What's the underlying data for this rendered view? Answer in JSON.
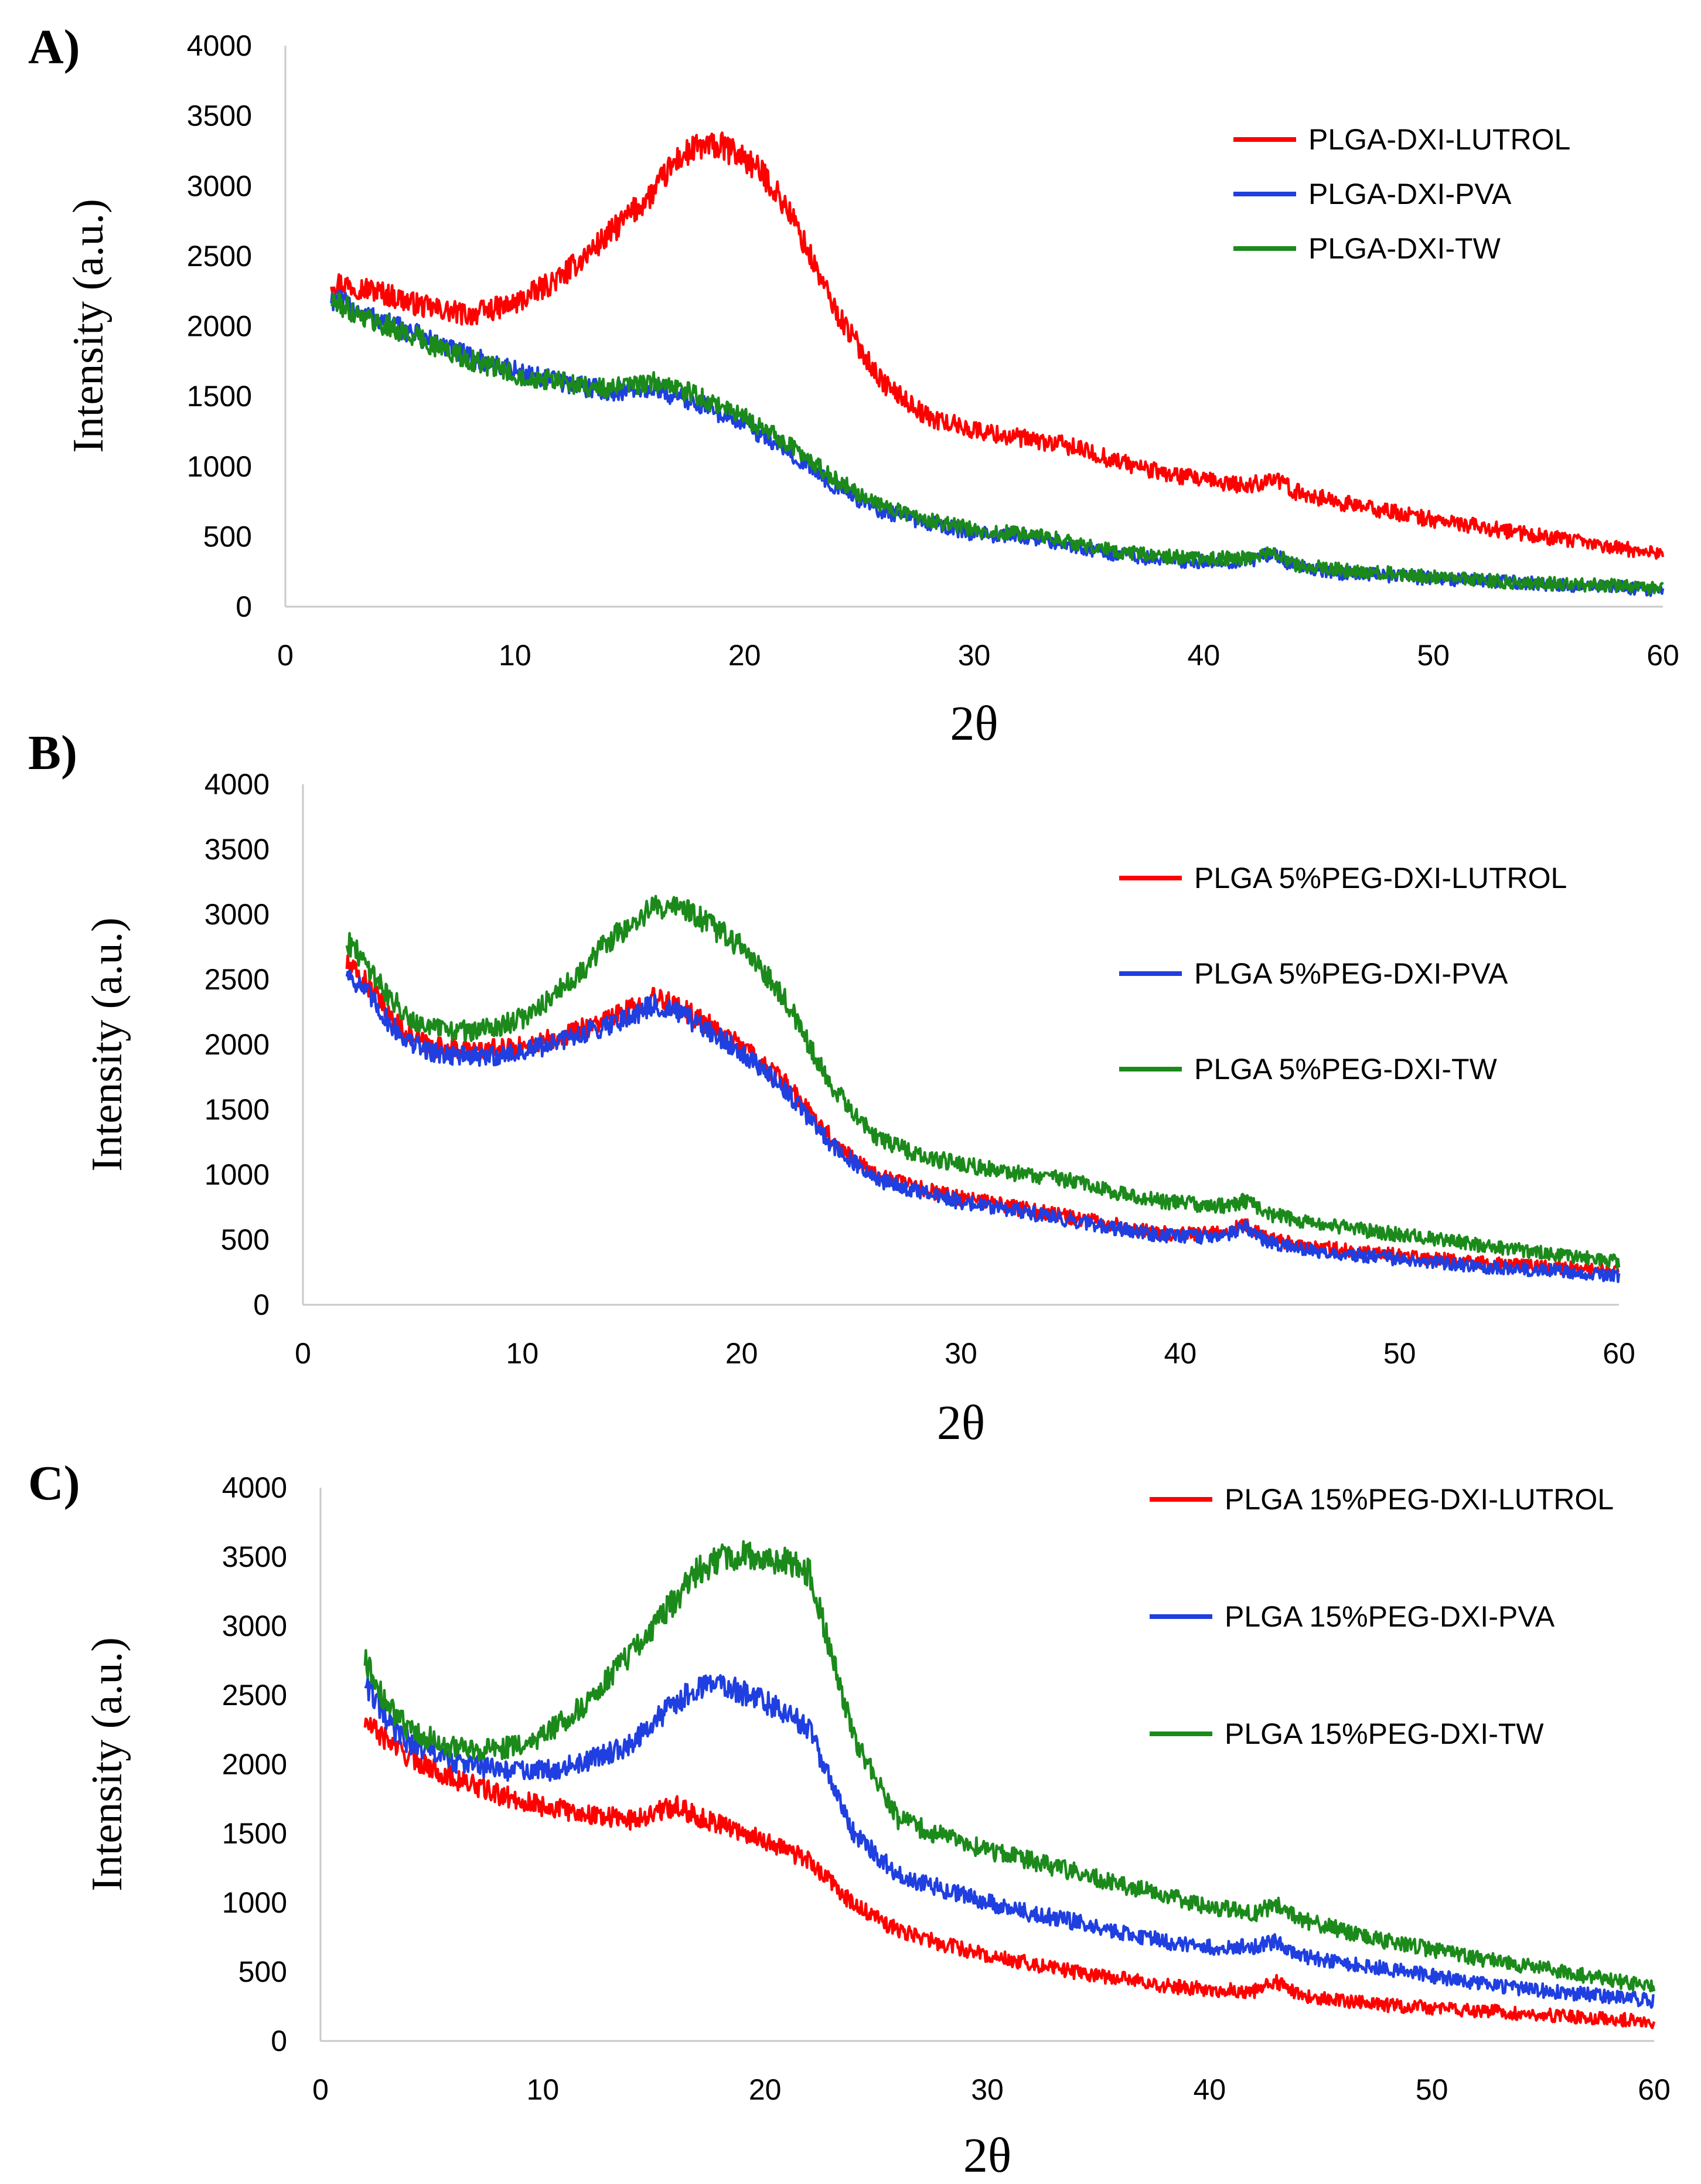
{
  "colors": {
    "red": "#ff0000",
    "blue": "#1f3fe0",
    "green": "#1b8a1b",
    "axis": "#c9c9c9"
  },
  "chart_data": [
    {
      "panel": "A)",
      "type": "line",
      "xlabel": "2θ",
      "ylabel": "Intensity (a.u.)",
      "xlim": [
        0,
        60
      ],
      "ylim": [
        0,
        4000
      ],
      "xticks": [
        "0",
        "10",
        "20",
        "30",
        "40",
        "50",
        "60"
      ],
      "yticks": [
        "0",
        "500",
        "1000",
        "1500",
        "2000",
        "2500",
        "3000",
        "3500",
        "4000"
      ],
      "legend_position": "top-right",
      "series": [
        {
          "name": "PLGA-DXI-LUTROL",
          "color": "red",
          "x": [
            2,
            4,
            6,
            8,
            10,
            12,
            14,
            16,
            17,
            18,
            19,
            20,
            21,
            22,
            24,
            26,
            28,
            30,
            32,
            34,
            36,
            38,
            40,
            42,
            43,
            44,
            46,
            48,
            50,
            52,
            54,
            56,
            58,
            60
          ],
          "y": [
            2320,
            2250,
            2140,
            2080,
            2160,
            2350,
            2640,
            2950,
            3180,
            3280,
            3280,
            3200,
            3050,
            2800,
            2100,
            1600,
            1350,
            1260,
            1200,
            1150,
            1050,
            960,
            900,
            860,
            920,
            820,
            740,
            680,
            620,
            570,
            520,
            470,
            420,
            380
          ]
        },
        {
          "name": "PLGA-DXI-PVA",
          "color": "blue",
          "x": [
            2,
            4,
            6,
            8,
            10,
            12,
            14,
            16,
            17,
            18,
            20,
            22,
            24,
            26,
            28,
            30,
            32,
            34,
            36,
            38,
            40,
            42,
            43,
            44,
            46,
            48,
            50,
            52,
            54,
            56,
            58,
            60
          ],
          "y": [
            2200,
            2050,
            1920,
            1780,
            1680,
            1600,
            1540,
            1550,
            1500,
            1450,
            1300,
            1100,
            850,
            680,
            600,
            520,
            500,
            450,
            380,
            340,
            320,
            330,
            380,
            280,
            240,
            220,
            200,
            190,
            170,
            150,
            140,
            120
          ]
        },
        {
          "name": "PLGA-DXI-TW",
          "color": "green",
          "x": [
            2,
            4,
            6,
            8,
            10,
            12,
            14,
            16,
            17,
            18,
            20,
            22,
            24,
            26,
            28,
            30,
            32,
            34,
            36,
            38,
            40,
            42,
            43,
            44,
            46,
            48,
            50,
            52,
            54,
            56,
            58,
            60
          ],
          "y": [
            2180,
            2030,
            1900,
            1760,
            1660,
            1600,
            1550,
            1600,
            1560,
            1500,
            1350,
            1150,
            900,
            720,
            620,
            550,
            520,
            470,
            400,
            360,
            340,
            350,
            400,
            300,
            260,
            240,
            210,
            190,
            170,
            160,
            150,
            130
          ]
        }
      ]
    },
    {
      "panel": "B)",
      "type": "line",
      "xlabel": "2θ",
      "ylabel": "Intensity (a.u.)",
      "xlim": [
        0,
        60
      ],
      "ylim": [
        0,
        4000
      ],
      "xticks": [
        "0",
        "10",
        "20",
        "30",
        "40",
        "50",
        "60"
      ],
      "yticks": [
        "0",
        "500",
        "1000",
        "1500",
        "2000",
        "2500",
        "3000",
        "3500",
        "4000"
      ],
      "legend_position": "top-right",
      "series": [
        {
          "name": "PLGA 5%PEG-DXI-LUTROL",
          "color": "red",
          "x": [
            2,
            3,
            4,
            5,
            6,
            8,
            10,
            12,
            14,
            16,
            17,
            18,
            20,
            22,
            24,
            26,
            28,
            30,
            32,
            34,
            36,
            38,
            40,
            42,
            43,
            44,
            46,
            48,
            50,
            52,
            54,
            56,
            58,
            60
          ],
          "y": [
            2620,
            2450,
            2200,
            2050,
            1980,
            1950,
            1980,
            2080,
            2200,
            2350,
            2300,
            2200,
            2000,
            1700,
            1300,
            1000,
            900,
            820,
            760,
            700,
            650,
            580,
            540,
            550,
            620,
            500,
            450,
            410,
            380,
            350,
            320,
            300,
            280,
            260
          ]
        },
        {
          "name": "PLGA 5%PEG-DXI-PVA",
          "color": "blue",
          "x": [
            2,
            3,
            4,
            5,
            6,
            8,
            10,
            12,
            14,
            16,
            17,
            18,
            20,
            22,
            24,
            26,
            28,
            30,
            32,
            34,
            36,
            38,
            40,
            42,
            43,
            44,
            46,
            48,
            50,
            52,
            54,
            56,
            58,
            60
          ],
          "y": [
            2560,
            2380,
            2150,
            2000,
            1940,
            1900,
            1940,
            2040,
            2160,
            2300,
            2250,
            2150,
            1950,
            1650,
            1250,
            970,
            870,
            790,
            740,
            680,
            620,
            560,
            520,
            530,
            600,
            480,
            420,
            380,
            350,
            320,
            290,
            270,
            250,
            220
          ]
        },
        {
          "name": "PLGA 5%PEG-DXI-TW",
          "color": "green",
          "x": [
            2,
            3,
            4,
            5,
            6,
            8,
            10,
            12,
            14,
            16,
            17,
            18,
            20,
            22,
            24,
            26,
            28,
            30,
            32,
            34,
            36,
            38,
            40,
            42,
            43,
            44,
            46,
            48,
            50,
            52,
            54,
            56,
            58,
            60
          ],
          "y": [
            2800,
            2600,
            2350,
            2200,
            2120,
            2100,
            2200,
            2450,
            2800,
            3050,
            3080,
            2980,
            2750,
            2350,
            1700,
            1300,
            1150,
            1080,
            1020,
            980,
            920,
            820,
            780,
            760,
            800,
            700,
            630,
            580,
            540,
            500,
            450,
            410,
            370,
            330
          ]
        }
      ]
    },
    {
      "panel": "C)",
      "type": "line",
      "xlabel": "2θ",
      "ylabel": "Intensity (a.u.)",
      "xlim": [
        0,
        60
      ],
      "ylim": [
        0,
        4000
      ],
      "xticks": [
        "0",
        "10",
        "20",
        "30",
        "40",
        "50",
        "60"
      ],
      "yticks": [
        "0",
        "500",
        "1000",
        "1500",
        "2000",
        "2500",
        "3000",
        "3500",
        "4000"
      ],
      "legend_position": "top-right",
      "series": [
        {
          "name": "PLGA 15%PEG-DXI-LUTROL",
          "color": "red",
          "x": [
            2,
            4,
            6,
            8,
            10,
            12,
            14,
            16,
            17,
            18,
            20,
            22,
            24,
            26,
            28,
            30,
            32,
            34,
            36,
            38,
            40,
            42,
            43,
            44,
            46,
            48,
            50,
            52,
            54,
            56,
            58,
            60
          ],
          "y": [
            2300,
            2050,
            1900,
            1780,
            1700,
            1640,
            1600,
            1700,
            1620,
            1570,
            1450,
            1300,
            980,
            800,
            700,
            620,
            560,
            500,
            450,
            400,
            370,
            360,
            430,
            330,
            290,
            260,
            240,
            220,
            200,
            180,
            160,
            140
          ]
        },
        {
          "name": "PLGA 15%PEG-DXI-PVA",
          "color": "blue",
          "x": [
            2,
            3,
            4,
            6,
            8,
            10,
            12,
            14,
            16,
            17,
            18,
            20,
            21,
            22,
            23,
            24,
            26,
            28,
            30,
            32,
            34,
            36,
            38,
            40,
            42,
            43,
            44,
            46,
            48,
            50,
            52,
            54,
            56,
            58,
            60
          ],
          "y": [
            2600,
            2300,
            2150,
            2020,
            1960,
            1950,
            2020,
            2150,
            2450,
            2560,
            2580,
            2450,
            2380,
            2250,
            1850,
            1500,
            1200,
            1100,
            1000,
            920,
            860,
            780,
            720,
            680,
            680,
            720,
            620,
            570,
            520,
            470,
            420,
            380,
            350,
            320,
            290
          ]
        },
        {
          "name": "PLGA 15%PEG-DXI-TW",
          "color": "green",
          "x": [
            2,
            3,
            4,
            6,
            8,
            10,
            12,
            14,
            16,
            17,
            18,
            19,
            20,
            21,
            22,
            23,
            24,
            26,
            28,
            30,
            32,
            34,
            36,
            38,
            40,
            42,
            43,
            44,
            46,
            48,
            50,
            52,
            54,
            56,
            58,
            60
          ],
          "y": [
            2750,
            2420,
            2250,
            2120,
            2100,
            2200,
            2450,
            2800,
            3200,
            3400,
            3480,
            3520,
            3500,
            3460,
            3380,
            2800,
            2200,
            1600,
            1480,
            1380,
            1300,
            1220,
            1130,
            1050,
            970,
            920,
            990,
            880,
            800,
            720,
            660,
            600,
            550,
            500,
            440,
            390
          ]
        }
      ]
    }
  ]
}
